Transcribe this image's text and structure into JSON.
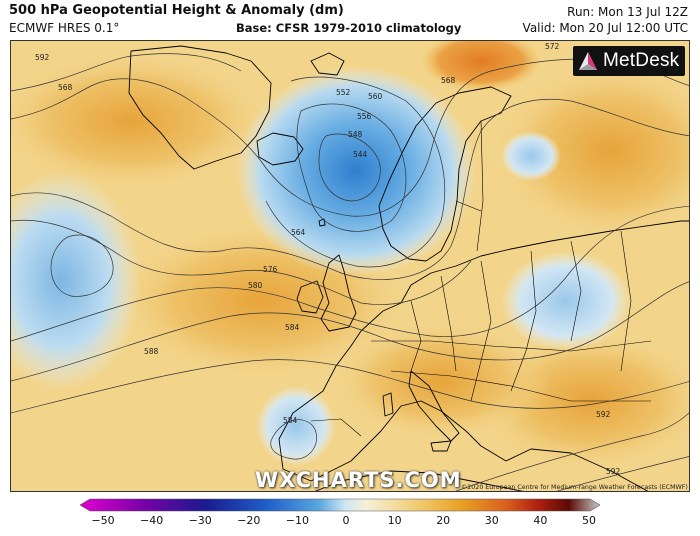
{
  "header": {
    "title": "500 hPa Geopotential Height & Anomaly (dm)",
    "model": "ECMWF HRES 0.1°",
    "base": "Base: CFSR 1979-2010 climatology",
    "run": "Run: Mon 13 Jul 12Z",
    "valid": "Valid: Mon 20 Jul 12:00 UTC"
  },
  "logo": {
    "text": "MetDesk"
  },
  "watermark": "WXCHARTS.COM",
  "copyright": "©2020 European Centre for Medium-range Weather Forecasts (ECMWF)",
  "contour_labels": [
    "552",
    "556",
    "560",
    "564",
    "568",
    "572",
    "576",
    "580",
    "584",
    "588",
    "592",
    "548",
    "544"
  ],
  "colorbar": {
    "ticks": [
      "−50",
      "−40",
      "−30",
      "−20",
      "−10",
      "0",
      "10",
      "20",
      "30",
      "40",
      "50"
    ],
    "colors": [
      "#e000d0",
      "#7a00a8",
      "#1a1a90",
      "#1f5fc8",
      "#5aa7e0",
      "#cfe6f5",
      "#f5f0d8",
      "#f2d07a",
      "#e9a225",
      "#d8601c",
      "#b02010",
      "#5a0a05",
      "#c9c9c9"
    ]
  },
  "colors": {
    "sea_positive": "#f0c75a",
    "sea_negative": "#8fc0e6",
    "coastline": "#000000"
  }
}
